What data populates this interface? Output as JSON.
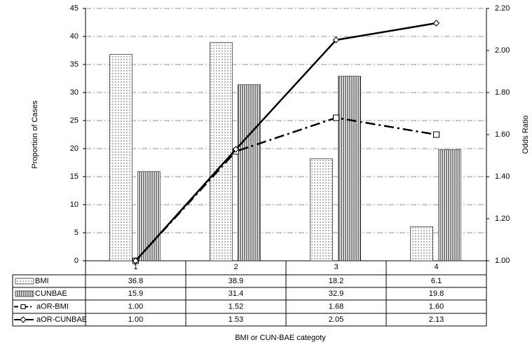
{
  "chart_data": {
    "type": "bar",
    "categories": [
      "1",
      "2",
      "3",
      "4"
    ],
    "series": [
      {
        "name": "BMI",
        "type": "bar",
        "pattern": "dots",
        "color": "#000000",
        "values": [
          36.8,
          38.9,
          18.2,
          6.1
        ]
      },
      {
        "name": "CUNBAE",
        "type": "bar",
        "pattern": "vertical-lines",
        "color": "#000000",
        "values": [
          15.9,
          31.4,
          32.9,
          19.8
        ]
      },
      {
        "name": "aOR-BMI",
        "type": "line",
        "axis": "y2",
        "marker": "square",
        "dash": "dash-dot",
        "color": "#000000",
        "values": [
          1,
          1.52,
          1.68,
          1.6
        ],
        "value_labels": [
          "1.00",
          "1.52",
          "1.68",
          "1.60"
        ]
      },
      {
        "name": "aOR-CUNBAE",
        "type": "line",
        "axis": "y2",
        "marker": "diamond",
        "dash": "solid",
        "color": "#000000",
        "values": [
          1,
          1.53,
          2.05,
          2.13
        ],
        "value_labels": [
          "1.00",
          "1.53",
          "2.05",
          "2.13"
        ]
      }
    ],
    "ylim": [
      0,
      45
    ],
    "yticks": [
      0,
      5,
      10,
      15,
      20,
      25,
      30,
      35,
      40,
      45
    ],
    "y2lim": [
      1,
      2.2
    ],
    "y2ticks": [
      {
        "value": 1,
        "label": "1.00"
      },
      {
        "value": 1.2,
        "label": "1.20"
      },
      {
        "value": 1.4,
        "label": "1.40"
      },
      {
        "value": 1.6,
        "label": "1.60"
      },
      {
        "value": 1.8,
        "label": "1.80"
      },
      {
        "value": 2,
        "label": "2.00"
      },
      {
        "value": 2.2,
        "label": "2.20"
      }
    ],
    "y_label": "Proportion of Cases",
    "y2_label": "Odds Ratio",
    "x_label": "BMI or CUN-BAE categoty",
    "grid": true
  }
}
